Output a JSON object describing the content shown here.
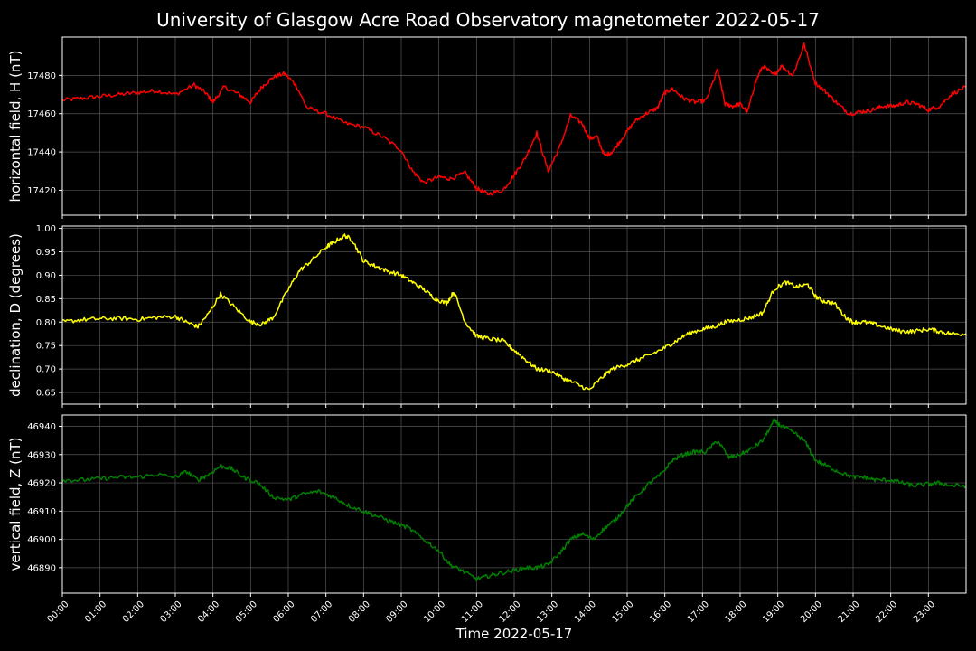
{
  "chart_data": {
    "type": "line",
    "title": "University of Glasgow Acre Road Observatory magnetometer 2022-05-17",
    "xlabel": "Time 2022-05-17",
    "x_ticks": [
      "00:00",
      "01:00",
      "02:00",
      "03:00",
      "04:00",
      "05:00",
      "06:00",
      "07:00",
      "08:00",
      "09:00",
      "10:00",
      "11:00",
      "12:00",
      "13:00",
      "14:00",
      "15:00",
      "16:00",
      "17:00",
      "18:00",
      "19:00",
      "20:00",
      "21:00",
      "22:00",
      "23:00"
    ],
    "xlim_hours": [
      0,
      24
    ],
    "grid": true,
    "panels": [
      {
        "ylabel": "horizontal field, H (nT)",
        "color": "#ff0000",
        "ylim": [
          17407,
          17500
        ],
        "yticks": [
          17420,
          17440,
          17460,
          17480
        ],
        "series": {
          "x_hours": [
            0,
            0.5,
            1,
            1.5,
            2,
            2.5,
            3,
            3.5,
            3.8,
            4,
            4.3,
            4.7,
            5,
            5.3,
            5.6,
            5.9,
            6.2,
            6.5,
            7,
            7.5,
            8,
            8.5,
            9,
            9.3,
            9.6,
            10,
            10.3,
            10.7,
            11,
            11.3,
            11.7,
            12,
            12.3,
            12.6,
            12.9,
            13.2,
            13.5,
            13.8,
            14,
            14.2,
            14.4,
            14.6,
            14.9,
            15.2,
            15.5,
            15.8,
            16,
            16.2,
            16.5,
            16.8,
            17.1,
            17.4,
            17.6,
            17.8,
            18,
            18.2,
            18.4,
            18.6,
            18.9,
            19.1,
            19.4,
            19.7,
            20,
            20.3,
            20.6,
            20.9,
            21.2,
            21.5,
            21.8,
            22.1,
            22.4,
            22.7,
            23,
            23.3,
            23.6,
            24
          ],
          "values": [
            17467,
            17468,
            17469,
            17470,
            17471,
            17472,
            17470,
            17475,
            17471,
            17466,
            17474,
            17470,
            17466,
            17474,
            17479,
            17481,
            17475,
            17463,
            17460,
            17455,
            17453,
            17448,
            17441,
            17430,
            17424,
            17427,
            17426,
            17429,
            17421,
            17418,
            17420,
            17428,
            17437,
            17450,
            17430,
            17442,
            17459,
            17455,
            17447,
            17448,
            17438,
            17440,
            17448,
            17456,
            17460,
            17463,
            17471,
            17473,
            17468,
            17466,
            17467,
            17483,
            17465,
            17464,
            17465,
            17461,
            17476,
            17485,
            17480,
            17485,
            17480,
            17496,
            17476,
            17471,
            17465,
            17460,
            17461,
            17462,
            17464,
            17464,
            17466,
            17465,
            17462,
            17464,
            17470,
            17474
          ]
        }
      },
      {
        "ylabel": "declination, D (degrees)",
        "color": "#ffff00",
        "ylim": [
          0.625,
          1.005
        ],
        "yticks": [
          0.65,
          0.7,
          0.75,
          0.8,
          0.85,
          0.9,
          0.95,
          1.0
        ],
        "series": {
          "x_hours": [
            0,
            0.5,
            1,
            1.5,
            2,
            2.5,
            3,
            3.3,
            3.6,
            3.9,
            4.2,
            4.6,
            5,
            5.3,
            5.6,
            6,
            6.3,
            6.6,
            7,
            7.2,
            7.5,
            7.7,
            8,
            8.3,
            8.6,
            9,
            9.3,
            9.6,
            9.9,
            10.2,
            10.4,
            10.7,
            11,
            11.3,
            11.7,
            12,
            12.3,
            12.6,
            13,
            13.3,
            13.6,
            14,
            14.3,
            14.6,
            15,
            15.3,
            15.6,
            16,
            16.3,
            16.6,
            17,
            17.3,
            17.6,
            18,
            18.3,
            18.6,
            18.9,
            19.2,
            19.5,
            19.8,
            20,
            20.2,
            20.5,
            20.8,
            21,
            21.3,
            21.6,
            22,
            22.3,
            22.6,
            23,
            23.3,
            23.6,
            24
          ],
          "values": [
            0.8,
            0.805,
            0.807,
            0.808,
            0.806,
            0.81,
            0.812,
            0.8,
            0.79,
            0.82,
            0.86,
            0.83,
            0.8,
            0.795,
            0.81,
            0.87,
            0.91,
            0.93,
            0.96,
            0.97,
            0.985,
            0.975,
            0.93,
            0.92,
            0.91,
            0.9,
            0.885,
            0.87,
            0.85,
            0.84,
            0.865,
            0.8,
            0.77,
            0.765,
            0.76,
            0.74,
            0.72,
            0.7,
            0.695,
            0.68,
            0.67,
            0.655,
            0.68,
            0.7,
            0.71,
            0.72,
            0.73,
            0.745,
            0.76,
            0.775,
            0.785,
            0.79,
            0.8,
            0.805,
            0.81,
            0.82,
            0.87,
            0.885,
            0.875,
            0.88,
            0.855,
            0.845,
            0.84,
            0.81,
            0.8,
            0.8,
            0.795,
            0.785,
            0.78,
            0.78,
            0.785,
            0.78,
            0.775,
            0.775
          ]
        }
      },
      {
        "ylabel": "vertical field, Z (nT)",
        "color": "#008000",
        "ylim": [
          46881,
          46944
        ],
        "yticks": [
          46890,
          46900,
          46910,
          46920,
          46930,
          46940
        ],
        "series": {
          "x_hours": [
            0,
            0.5,
            1,
            1.5,
            2,
            2.5,
            3,
            3.3,
            3.6,
            3.9,
            4.2,
            4.5,
            4.8,
            5.2,
            5.6,
            6,
            6.4,
            6.8,
            7.2,
            7.6,
            8,
            8.4,
            8.8,
            9.2,
            9.6,
            10,
            10.3,
            10.6,
            11,
            11.3,
            11.6,
            12,
            12.3,
            12.6,
            12.9,
            13.2,
            13.5,
            13.8,
            14.1,
            14.4,
            14.7,
            15,
            15.3,
            15.6,
            15.9,
            16.2,
            16.5,
            16.8,
            17.1,
            17.4,
            17.7,
            18,
            18.3,
            18.6,
            18.9,
            19.1,
            19.4,
            19.7,
            20,
            20.3,
            20.6,
            21,
            21.3,
            21.6,
            22,
            22.3,
            22.6,
            23,
            23.3,
            23.6,
            24
          ],
          "values": [
            46921,
            46921,
            46921.5,
            46922,
            46922,
            46923,
            46922,
            46924,
            46921,
            46923,
            46926,
            46925,
            46922,
            46920,
            46915,
            46914,
            46916,
            46917,
            46915,
            46912,
            46910,
            46908,
            46906,
            46904,
            46900,
            46896,
            46891,
            46889,
            46886,
            46887,
            46888,
            46889,
            46890,
            46890,
            46891,
            46895,
            46900,
            46902,
            46900,
            46904,
            46907,
            46912,
            46916,
            46920,
            46923,
            46928,
            46930,
            46931,
            46931,
            46935,
            46929,
            46930,
            46932,
            46935,
            46942,
            46940,
            46938,
            46935,
            46928,
            46926,
            46924,
            46922,
            46922,
            46921,
            46921,
            46920,
            46919,
            46919.5,
            46920,
            46919,
            46919
          ]
        }
      }
    ]
  }
}
